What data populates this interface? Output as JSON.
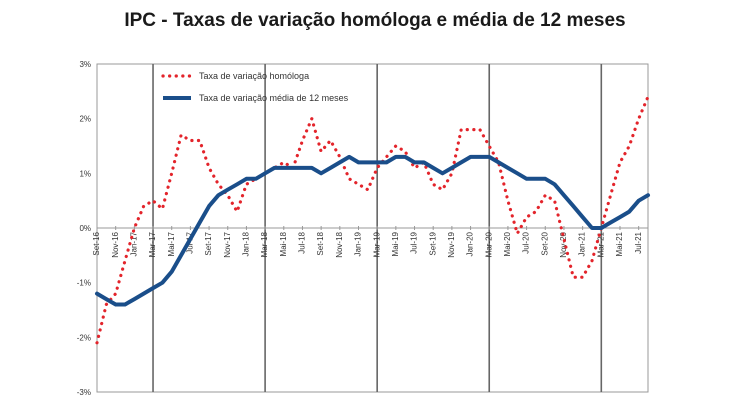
{
  "chart_data": {
    "type": "line",
    "title": "IPC - Taxas de variação homóloga e média de 12 meses",
    "xlabel": "",
    "ylabel": "",
    "ylim": [
      -3,
      3
    ],
    "y_ticks": [
      "3%",
      "2%",
      "1%",
      "0%",
      "-1%",
      "-2%",
      "-3%"
    ],
    "x_ticks": [
      "Set-16",
      "Nov-16",
      "Jan-17",
      "Mar-17",
      "Mai-17",
      "Jul-17",
      "Set-17",
      "Nov-17",
      "Jan-18",
      "Mar-18",
      "Mai-18",
      "Jul-18",
      "Set-18",
      "Nov-18",
      "Jan-19",
      "Mar-19",
      "Mai-19",
      "Jul-19",
      "Set-19",
      "Nov-19",
      "Jan-20",
      "Mar-20",
      "Mai-20",
      "Jul-20",
      "Set-20",
      "Nov-20",
      "Jan-21",
      "Mar-21",
      "Mai-21",
      "Jul-21"
    ],
    "grid": "vertical lines at each March",
    "legend_position": "top-left",
    "x": [
      "Set-16",
      "Out-16",
      "Nov-16",
      "Dez-16",
      "Jan-17",
      "Fev-17",
      "Mar-17",
      "Abr-17",
      "Mai-17",
      "Jun-17",
      "Jul-17",
      "Ago-17",
      "Set-17",
      "Out-17",
      "Nov-17",
      "Dez-17",
      "Jan-18",
      "Fev-18",
      "Mar-18",
      "Abr-18",
      "Mai-18",
      "Jun-18",
      "Jul-18",
      "Ago-18",
      "Set-18",
      "Out-18",
      "Nov-18",
      "Dez-18",
      "Jan-19",
      "Fev-19",
      "Mar-19",
      "Abr-19",
      "Mai-19",
      "Jun-19",
      "Jul-19",
      "Ago-19",
      "Set-19",
      "Out-19",
      "Nov-19",
      "Dez-19",
      "Jan-20",
      "Fev-20",
      "Mar-20",
      "Abr-20",
      "Mai-20",
      "Jun-20",
      "Jul-20",
      "Ago-20",
      "Set-20",
      "Out-20",
      "Nov-20",
      "Dez-20",
      "Jan-21",
      "Fev-21",
      "Mar-21",
      "Abr-21",
      "Mai-21",
      "Jun-21",
      "Jul-21",
      "Ago-21"
    ],
    "series": [
      {
        "name": "Taxa de variação homóloga",
        "color": "#e3242b",
        "style": "dotted",
        "values": [
          -2.1,
          -1.4,
          -1.2,
          -0.6,
          0.0,
          0.4,
          0.5,
          0.35,
          1.0,
          1.7,
          1.6,
          1.6,
          1.1,
          0.8,
          0.6,
          0.3,
          0.8,
          0.9,
          1.0,
          1.1,
          1.2,
          1.1,
          1.6,
          2.0,
          1.4,
          1.6,
          1.3,
          0.9,
          0.8,
          0.7,
          1.1,
          1.3,
          1.5,
          1.4,
          1.1,
          1.2,
          0.8,
          0.7,
          1.0,
          1.8,
          1.8,
          1.8,
          1.5,
          1.2,
          0.5,
          -0.1,
          0.2,
          0.3,
          0.6,
          0.5,
          -0.2,
          -0.9,
          -0.9,
          -0.6,
          0.0,
          0.6,
          1.2,
          1.5,
          2.0,
          2.4
        ]
      },
      {
        "name": "Taxa de variação média de 12 meses",
        "color": "#1a4e8a",
        "style": "solid",
        "values": [
          -1.2,
          -1.3,
          -1.4,
          -1.4,
          -1.3,
          -1.2,
          -1.1,
          -1.0,
          -0.8,
          -0.5,
          -0.2,
          0.1,
          0.4,
          0.6,
          0.7,
          0.8,
          0.9,
          0.9,
          1.0,
          1.1,
          1.1,
          1.1,
          1.1,
          1.1,
          1.0,
          1.1,
          1.2,
          1.3,
          1.2,
          1.2,
          1.2,
          1.2,
          1.3,
          1.3,
          1.2,
          1.2,
          1.1,
          1.0,
          1.1,
          1.2,
          1.3,
          1.3,
          1.3,
          1.2,
          1.1,
          1.0,
          0.9,
          0.9,
          0.9,
          0.8,
          0.6,
          0.4,
          0.2,
          0.0,
          0.0,
          0.1,
          0.2,
          0.3,
          0.5,
          0.6
        ]
      }
    ]
  }
}
